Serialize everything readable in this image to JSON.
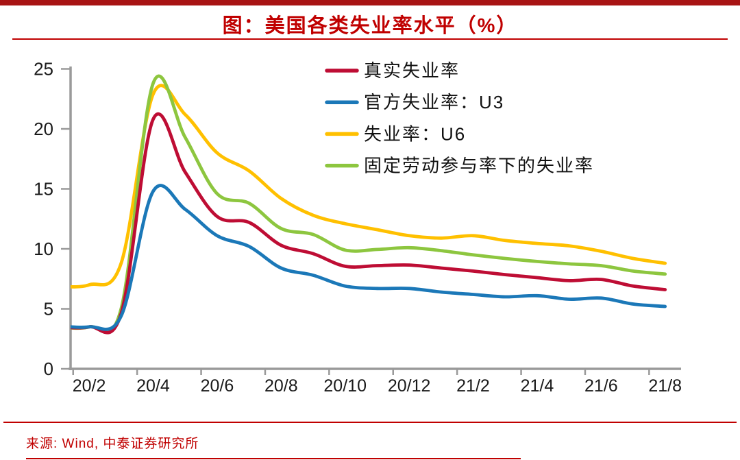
{
  "header": {
    "title": "图：美国各类失业率水平（%）"
  },
  "footer": {
    "source": "来源: Wind, 中泰证券研究所"
  },
  "colors": {
    "top_bar": "#A81414",
    "title_red": "#C00000",
    "axis_gray": "#9A9A9A",
    "tick_text": "#1a1a1a",
    "legend_text": "#111111",
    "series_real": "#BE0D34",
    "series_u3": "#1B78B8",
    "series_u6": "#FFC000",
    "series_fixed_lfpr": "#8DC63F"
  },
  "chart_data": {
    "type": "line",
    "title": "图：美国各类失业率水平（%）",
    "smoothed": true,
    "grid": false,
    "legend_position": "top-center-inside",
    "x": [
      "20/1",
      "20/2",
      "20/3",
      "20/4",
      "20/5",
      "20/6",
      "20/7",
      "20/8",
      "20/9",
      "20/10",
      "20/11",
      "20/12",
      "21/1",
      "21/2",
      "21/3",
      "21/4",
      "21/5",
      "21/6",
      "21/7",
      "21/8"
    ],
    "x_tick_labels": [
      "20/2",
      "20/4",
      "20/6",
      "20/8",
      "20/10",
      "20/12",
      "21/2",
      "21/4",
      "21/6",
      "21/8"
    ],
    "ylim": [
      0,
      25
    ],
    "yticks": [
      0,
      5,
      10,
      15,
      20,
      25
    ],
    "series": [
      {
        "key": "real-unemployment",
        "name": "真实失业率",
        "color": "#BE0D34",
        "values": [
          3.5,
          3.5,
          4.6,
          20.8,
          16.4,
          12.7,
          12.2,
          10.3,
          9.6,
          8.55,
          8.6,
          8.65,
          8.4,
          8.15,
          7.85,
          7.6,
          7.35,
          7.45,
          6.9,
          6.6
        ]
      },
      {
        "key": "official-u3",
        "name": "官方失业率：U3",
        "color": "#1B78B8",
        "values": [
          3.6,
          3.5,
          4.4,
          14.8,
          13.3,
          11.1,
          10.2,
          8.4,
          7.8,
          6.9,
          6.7,
          6.7,
          6.4,
          6.2,
          6.0,
          6.1,
          5.8,
          5.9,
          5.4,
          5.2
        ]
      },
      {
        "key": "u6",
        "name": "失业率：U6",
        "color": "#FFC000",
        "values": [
          6.9,
          7.0,
          8.8,
          22.9,
          21.2,
          18.0,
          16.5,
          14.2,
          12.8,
          12.1,
          11.6,
          11.1,
          10.9,
          11.1,
          10.7,
          10.45,
          10.25,
          9.8,
          9.2,
          8.8
        ]
      },
      {
        "key": "fixed-lfpr",
        "name": "固定劳动参与率下的失业率",
        "color": "#8DC63F",
        "values": [
          3.5,
          3.5,
          5.0,
          23.8,
          19.3,
          14.6,
          13.8,
          11.7,
          11.2,
          9.9,
          9.95,
          10.1,
          9.85,
          9.5,
          9.2,
          8.95,
          8.75,
          8.6,
          8.15,
          7.9
        ]
      }
    ]
  }
}
